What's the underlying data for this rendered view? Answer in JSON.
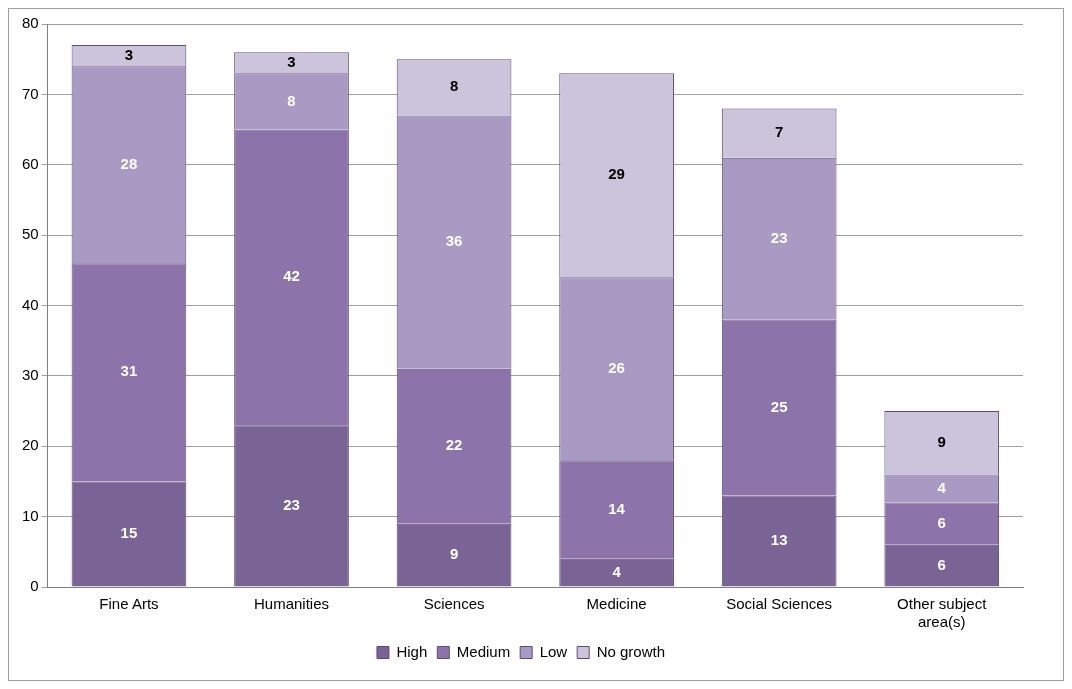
{
  "chart_data": {
    "type": "bar",
    "stacked": true,
    "categories": [
      "Fine Arts",
      "Humanities",
      "Sciences",
      "Medicine",
      "Social Sciences",
      "Other subject area(s)"
    ],
    "series": [
      {
        "name": "High",
        "color": "#7a6496",
        "values": [
          15,
          23,
          9,
          4,
          13,
          6
        ]
      },
      {
        "name": "Medium",
        "color": "#8c74aa",
        "values": [
          31,
          42,
          22,
          14,
          25,
          6
        ]
      },
      {
        "name": "Low",
        "color": "#a99ac3",
        "values": [
          28,
          8,
          36,
          26,
          23,
          4
        ]
      },
      {
        "name": "No growth",
        "color": "#ccc4da",
        "values": [
          3,
          3,
          8,
          29,
          7,
          9
        ]
      }
    ],
    "ylim": [
      0,
      80
    ],
    "yticks": [
      0,
      10,
      20,
      30,
      40,
      50,
      60,
      70,
      80
    ],
    "grid": "y",
    "legend": "bottom",
    "data_labels": true
  }
}
